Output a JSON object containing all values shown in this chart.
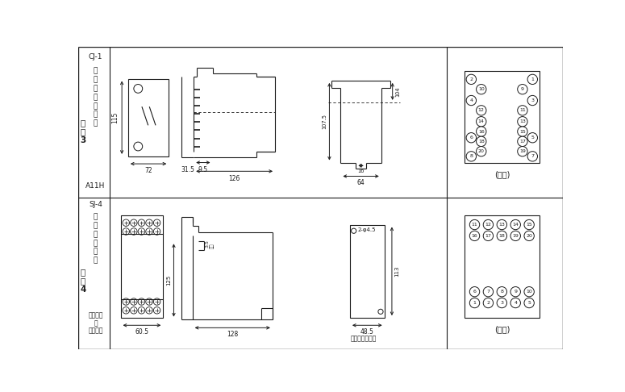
{
  "bg_color": "#ffffff",
  "lc": "#1a1a1a",
  "fig_width": 7.75,
  "fig_height": 4.86,
  "back_view_label": "(背视)",
  "front_view_label": "(正视)",
  "screw_label": "螺钉安装开孔图",
  "col_div1": 50,
  "col_div2": 590,
  "row_div": 243
}
